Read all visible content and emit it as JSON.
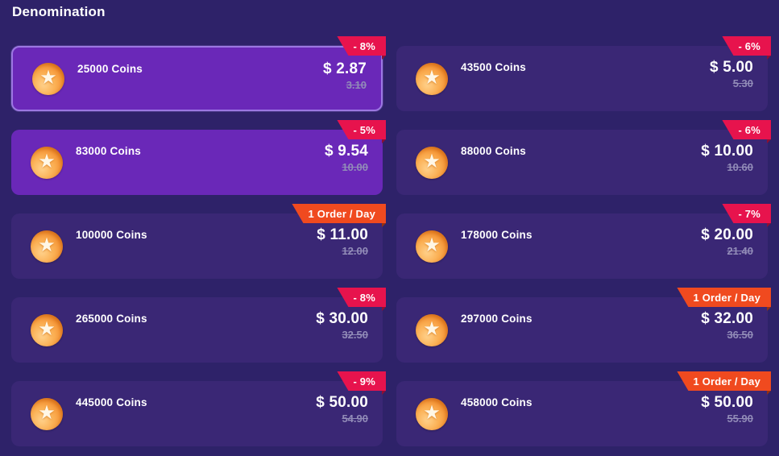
{
  "page": {
    "title": "Denomination"
  },
  "colors": {
    "background": "#2e2269",
    "card": "#3a2775",
    "card_highlight": "#6a28b8",
    "selected_border": "#9c77e2",
    "discount_badge": "#e7134d",
    "limit_badge": "#f04a1f",
    "price_text": "#ffffff",
    "old_price_text": "#928cb8",
    "coin_orange": "#f9a843"
  },
  "icons": {
    "coin": "coin-star-icon",
    "star_glyph": "★"
  },
  "cards": [
    {
      "coins": "25000 Coins",
      "price": "$ 2.87",
      "old_price": "3.10",
      "badge": {
        "label": "- 8%",
        "type": "discount"
      },
      "state": "selected"
    },
    {
      "coins": "43500 Coins",
      "price": "$ 5.00",
      "old_price": "5.30",
      "badge": {
        "label": "- 6%",
        "type": "discount"
      },
      "state": "default"
    },
    {
      "coins": "83000 Coins",
      "price": "$ 9.54",
      "old_price": "10.00",
      "badge": {
        "label": "- 5%",
        "type": "discount"
      },
      "state": "highlighted"
    },
    {
      "coins": "88000 Coins",
      "price": "$ 10.00",
      "old_price": "10.60",
      "badge": {
        "label": "- 6%",
        "type": "discount"
      },
      "state": "default"
    },
    {
      "coins": "100000 Coins",
      "price": "$ 11.00",
      "old_price": "12.00",
      "badge": {
        "label": "1 Order / Day",
        "type": "limit"
      },
      "state": "default"
    },
    {
      "coins": "178000 Coins",
      "price": "$ 20.00",
      "old_price": "21.40",
      "badge": {
        "label": "- 7%",
        "type": "discount"
      },
      "state": "default"
    },
    {
      "coins": "265000 Coins",
      "price": "$ 30.00",
      "old_price": "32.50",
      "badge": {
        "label": "- 8%",
        "type": "discount"
      },
      "state": "default"
    },
    {
      "coins": "297000 Coins",
      "price": "$ 32.00",
      "old_price": "36.50",
      "badge": {
        "label": "1 Order / Day",
        "type": "limit"
      },
      "state": "default"
    },
    {
      "coins": "445000 Coins",
      "price": "$ 50.00",
      "old_price": "54.90",
      "badge": {
        "label": "- 9%",
        "type": "discount"
      },
      "state": "default"
    },
    {
      "coins": "458000 Coins",
      "price": "$ 50.00",
      "old_price": "55.90",
      "badge": {
        "label": "1 Order / Day",
        "type": "limit"
      },
      "state": "default"
    }
  ]
}
